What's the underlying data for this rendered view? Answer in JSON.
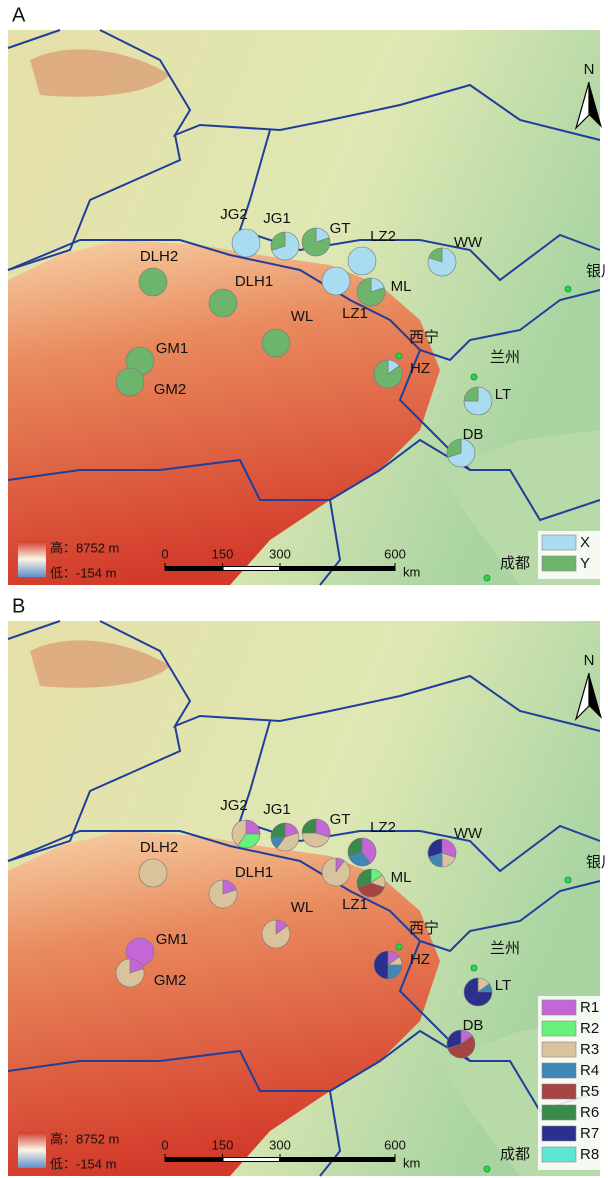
{
  "panels": [
    {
      "label": "A",
      "north": "N",
      "elevation_legend": {
        "high": "高：8752 m",
        "low": "低：-154 m"
      },
      "scale_bar": {
        "ticks": [
          0,
          150,
          300,
          600
        ],
        "unit": "km"
      },
      "cities": [
        "银川",
        "西宁",
        "兰州",
        "成都"
      ],
      "legend": [
        {
          "name": "X",
          "color": "#a8dcf0"
        },
        {
          "name": "Y",
          "color": "#6db56d"
        }
      ],
      "sites": [
        {
          "name": "JG2",
          "values": [
            100,
            0
          ]
        },
        {
          "name": "JG1",
          "values": [
            70,
            30
          ]
        },
        {
          "name": "GT",
          "values": [
            20,
            80
          ]
        },
        {
          "name": "LZ2",
          "values": [
            100,
            0
          ]
        },
        {
          "name": "LZ1",
          "values": [
            100,
            0
          ]
        },
        {
          "name": "ML",
          "values": [
            20,
            80
          ]
        },
        {
          "name": "WW",
          "values": [
            80,
            20
          ]
        },
        {
          "name": "DLH2",
          "values": [
            0,
            100
          ]
        },
        {
          "name": "DLH1",
          "values": [
            0,
            100
          ]
        },
        {
          "name": "WL",
          "values": [
            0,
            100
          ]
        },
        {
          "name": "GM1",
          "values": [
            0,
            100
          ]
        },
        {
          "name": "GM2",
          "values": [
            0,
            100
          ]
        },
        {
          "name": "HZ",
          "values": [
            15,
            85
          ]
        },
        {
          "name": "LT",
          "values": [
            75,
            25
          ]
        },
        {
          "name": "DB",
          "values": [
            70,
            30
          ]
        }
      ]
    },
    {
      "label": "B",
      "north": "N",
      "elevation_legend": {
        "high": "高：8752 m",
        "low": "低：-154 m"
      },
      "scale_bar": {
        "ticks": [
          0,
          150,
          300,
          600
        ],
        "unit": "km"
      },
      "cities": [
        "银川",
        "西宁",
        "兰州",
        "成都"
      ],
      "legend": [
        {
          "name": "R1",
          "color": "#c466d6"
        },
        {
          "name": "R2",
          "color": "#66f27a"
        },
        {
          "name": "R3",
          "color": "#d9c39c"
        },
        {
          "name": "R4",
          "color": "#3f87b5"
        },
        {
          "name": "R5",
          "color": "#a64444"
        },
        {
          "name": "R6",
          "color": "#3a8a4c"
        },
        {
          "name": "R7",
          "color": "#2b2f8e"
        },
        {
          "name": "R8",
          "color": "#5ee6d4"
        }
      ],
      "sites": [
        {
          "name": "JG2",
          "values": [
            25,
            35,
            40,
            0,
            0,
            0,
            0,
            0
          ]
        },
        {
          "name": "JG1",
          "values": [
            20,
            0,
            40,
            15,
            0,
            25,
            0,
            0
          ]
        },
        {
          "name": "GT",
          "values": [
            30,
            0,
            45,
            0,
            0,
            25,
            0,
            0
          ]
        },
        {
          "name": "LZ2",
          "values": [
            40,
            0,
            0,
            30,
            0,
            30,
            0,
            0
          ]
        },
        {
          "name": "LZ1",
          "values": [
            10,
            0,
            90,
            0,
            0,
            0,
            0,
            0
          ]
        },
        {
          "name": "ML",
          "values": [
            0,
            15,
            15,
            0,
            40,
            30,
            0,
            0
          ]
        },
        {
          "name": "WW",
          "values": [
            30,
            0,
            20,
            20,
            0,
            0,
            30,
            0
          ]
        },
        {
          "name": "DLH2",
          "values": [
            0,
            0,
            100,
            0,
            0,
            0,
            0,
            0
          ]
        },
        {
          "name": "DLH1",
          "values": [
            20,
            0,
            80,
            0,
            0,
            0,
            0,
            0
          ]
        },
        {
          "name": "WL",
          "values": [
            15,
            0,
            85,
            0,
            0,
            0,
            0,
            0
          ]
        },
        {
          "name": "GM1",
          "values": [
            100,
            0,
            0,
            0,
            0,
            0,
            0,
            0
          ]
        },
        {
          "name": "GM2",
          "values": [
            20,
            0,
            80,
            0,
            0,
            0,
            0,
            0
          ]
        },
        {
          "name": "HZ",
          "values": [
            15,
            0,
            10,
            25,
            0,
            0,
            50,
            0
          ]
        },
        {
          "name": "LT",
          "values": [
            0,
            0,
            15,
            10,
            0,
            0,
            75,
            0
          ]
        },
        {
          "name": "DB",
          "values": [
            15,
            0,
            0,
            0,
            55,
            0,
            30,
            0
          ]
        }
      ]
    }
  ]
}
